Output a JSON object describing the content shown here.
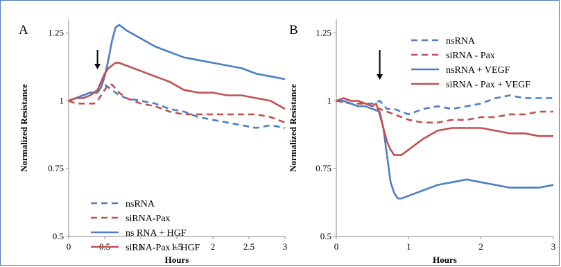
{
  "chart_data": [
    {
      "type": "line",
      "panel_label": "A",
      "xlabel": "Hours",
      "ylabel": "Normalized Resistance",
      "xlim": [
        0,
        3
      ],
      "ylim": [
        0.5,
        1.3
      ],
      "xticks": [
        "0",
        "0.5",
        "1",
        "1.5",
        "2",
        "2.5",
        "3"
      ],
      "yticks": [
        "0.5",
        "0.75",
        "1",
        "1.25"
      ],
      "legend_position": "lower-left",
      "annotation": "arrow at treatment time",
      "arrow_x": 0.4,
      "series": [
        {
          "name": "nsRNA",
          "color": "#4a7ec6",
          "dash": true,
          "points": [
            [
              0,
              1.0
            ],
            [
              0.1,
              1.01
            ],
            [
              0.2,
              1.02
            ],
            [
              0.3,
              1.03
            ],
            [
              0.4,
              1.03
            ],
            [
              0.45,
              1.05
            ],
            [
              0.5,
              1.06
            ],
            [
              0.55,
              1.05
            ],
            [
              0.6,
              1.04
            ],
            [
              0.7,
              1.02
            ],
            [
              0.8,
              1.01
            ],
            [
              1.0,
              1.0
            ],
            [
              1.2,
              0.99
            ],
            [
              1.4,
              0.97
            ],
            [
              1.6,
              0.96
            ],
            [
              1.8,
              0.94
            ],
            [
              2.0,
              0.93
            ],
            [
              2.2,
              0.92
            ],
            [
              2.4,
              0.91
            ],
            [
              2.6,
              0.9
            ],
            [
              2.8,
              0.91
            ],
            [
              3.0,
              0.9
            ]
          ]
        },
        {
          "name": "siRNA-Pax",
          "color": "#c0504d",
          "dash": true,
          "points": [
            [
              0,
              1.0
            ],
            [
              0.1,
              0.99
            ],
            [
              0.2,
              0.99
            ],
            [
              0.3,
              0.99
            ],
            [
              0.35,
              0.99
            ],
            [
              0.4,
              1.0
            ],
            [
              0.45,
              1.02
            ],
            [
              0.5,
              1.04
            ],
            [
              0.55,
              1.06
            ],
            [
              0.6,
              1.06
            ],
            [
              0.7,
              1.03
            ],
            [
              0.8,
              1.01
            ],
            [
              1.0,
              0.99
            ],
            [
              1.2,
              0.98
            ],
            [
              1.4,
              0.96
            ],
            [
              1.6,
              0.95
            ],
            [
              1.8,
              0.95
            ],
            [
              2.0,
              0.95
            ],
            [
              2.2,
              0.95
            ],
            [
              2.4,
              0.95
            ],
            [
              2.6,
              0.95
            ],
            [
              2.8,
              0.94
            ],
            [
              3.0,
              0.92
            ]
          ]
        },
        {
          "name": "ns RNA + HGF",
          "color": "#4a7ec6",
          "dash": false,
          "points": [
            [
              0,
              1.0
            ],
            [
              0.1,
              1.01
            ],
            [
              0.2,
              1.02
            ],
            [
              0.3,
              1.03
            ],
            [
              0.4,
              1.03
            ],
            [
              0.45,
              1.05
            ],
            [
              0.5,
              1.09
            ],
            [
              0.55,
              1.15
            ],
            [
              0.6,
              1.22
            ],
            [
              0.65,
              1.27
            ],
            [
              0.7,
              1.28
            ],
            [
              0.8,
              1.26
            ],
            [
              1.0,
              1.23
            ],
            [
              1.2,
              1.2
            ],
            [
              1.4,
              1.18
            ],
            [
              1.6,
              1.16
            ],
            [
              1.8,
              1.15
            ],
            [
              2.0,
              1.14
            ],
            [
              2.2,
              1.13
            ],
            [
              2.4,
              1.12
            ],
            [
              2.6,
              1.1
            ],
            [
              2.8,
              1.09
            ],
            [
              3.0,
              1.08
            ]
          ]
        },
        {
          "name": "siRNA-Pax + HGF",
          "color": "#c0504d",
          "dash": false,
          "points": [
            [
              0,
              1.0
            ],
            [
              0.1,
              1.01
            ],
            [
              0.2,
              1.01
            ],
            [
              0.3,
              1.02
            ],
            [
              0.4,
              1.04
            ],
            [
              0.45,
              1.07
            ],
            [
              0.5,
              1.1
            ],
            [
              0.55,
              1.12
            ],
            [
              0.6,
              1.13
            ],
            [
              0.65,
              1.14
            ],
            [
              0.7,
              1.14
            ],
            [
              0.8,
              1.13
            ],
            [
              1.0,
              1.11
            ],
            [
              1.2,
              1.09
            ],
            [
              1.4,
              1.07
            ],
            [
              1.6,
              1.04
            ],
            [
              1.8,
              1.03
            ],
            [
              2.0,
              1.03
            ],
            [
              2.2,
              1.02
            ],
            [
              2.4,
              1.02
            ],
            [
              2.6,
              1.01
            ],
            [
              2.8,
              1.0
            ],
            [
              3.0,
              0.97
            ]
          ]
        }
      ]
    },
    {
      "type": "line",
      "panel_label": "B",
      "xlabel": "Hours",
      "ylabel": "Normalized Resistance",
      "xlim": [
        0,
        3
      ],
      "ylim": [
        0.5,
        1.3
      ],
      "xticks": [
        "0",
        "1",
        "2",
        "3"
      ],
      "yticks": [
        "0.5",
        "0.75",
        "1",
        "1.25"
      ],
      "legend_position": "top-right",
      "annotation": "arrow at treatment time",
      "arrow_x": 0.6,
      "series": [
        {
          "name": "nsRNA",
          "color": "#4a7ec6",
          "dash": true,
          "points": [
            [
              0,
              1.0
            ],
            [
              0.2,
              0.99
            ],
            [
              0.4,
              0.99
            ],
            [
              0.5,
              0.99
            ],
            [
              0.6,
              1.0
            ],
            [
              0.7,
              0.97
            ],
            [
              0.8,
              0.97
            ],
            [
              0.9,
              0.96
            ],
            [
              1.0,
              0.95
            ],
            [
              1.2,
              0.97
            ],
            [
              1.4,
              0.98
            ],
            [
              1.6,
              0.97
            ],
            [
              1.8,
              0.98
            ],
            [
              2.0,
              0.99
            ],
            [
              2.2,
              1.01
            ],
            [
              2.4,
              1.02
            ],
            [
              2.6,
              1.01
            ],
            [
              2.8,
              1.01
            ],
            [
              3.0,
              1.01
            ]
          ]
        },
        {
          "name": "siRNA - Pax",
          "color": "#c0504d",
          "dash": true,
          "points": [
            [
              0,
              1.0
            ],
            [
              0.2,
              0.99
            ],
            [
              0.4,
              0.99
            ],
            [
              0.5,
              0.98
            ],
            [
              0.6,
              0.97
            ],
            [
              0.7,
              0.96
            ],
            [
              0.8,
              0.95
            ],
            [
              0.9,
              0.94
            ],
            [
              1.0,
              0.93
            ],
            [
              1.2,
              0.92
            ],
            [
              1.4,
              0.92
            ],
            [
              1.6,
              0.93
            ],
            [
              1.8,
              0.93
            ],
            [
              2.0,
              0.94
            ],
            [
              2.2,
              0.94
            ],
            [
              2.4,
              0.95
            ],
            [
              2.6,
              0.95
            ],
            [
              2.8,
              0.96
            ],
            [
              3.0,
              0.96
            ]
          ]
        },
        {
          "name": "nsRNA + VEGF",
          "color": "#4a7ec6",
          "dash": false,
          "points": [
            [
              0,
              1.0
            ],
            [
              0.1,
              1.0
            ],
            [
              0.2,
              0.99
            ],
            [
              0.3,
              0.98
            ],
            [
              0.4,
              0.98
            ],
            [
              0.5,
              0.97
            ],
            [
              0.6,
              0.96
            ],
            [
              0.65,
              0.9
            ],
            [
              0.7,
              0.8
            ],
            [
              0.75,
              0.7
            ],
            [
              0.8,
              0.66
            ],
            [
              0.85,
              0.64
            ],
            [
              0.9,
              0.64
            ],
            [
              1.0,
              0.65
            ],
            [
              1.2,
              0.67
            ],
            [
              1.4,
              0.69
            ],
            [
              1.6,
              0.7
            ],
            [
              1.8,
              0.71
            ],
            [
              2.0,
              0.7
            ],
            [
              2.2,
              0.69
            ],
            [
              2.4,
              0.68
            ],
            [
              2.6,
              0.68
            ],
            [
              2.8,
              0.68
            ],
            [
              3.0,
              0.69
            ]
          ]
        },
        {
          "name": "siRNA - Pax + VEGF",
          "color": "#c0504d",
          "dash": false,
          "points": [
            [
              0,
              1.0
            ],
            [
              0.1,
              1.01
            ],
            [
              0.2,
              1.0
            ],
            [
              0.3,
              1.0
            ],
            [
              0.4,
              0.99
            ],
            [
              0.5,
              0.98
            ],
            [
              0.55,
              0.99
            ],
            [
              0.6,
              0.95
            ],
            [
              0.65,
              0.9
            ],
            [
              0.7,
              0.85
            ],
            [
              0.75,
              0.82
            ],
            [
              0.8,
              0.8
            ],
            [
              0.9,
              0.8
            ],
            [
              1.0,
              0.82
            ],
            [
              1.2,
              0.86
            ],
            [
              1.4,
              0.89
            ],
            [
              1.6,
              0.9
            ],
            [
              1.8,
              0.9
            ],
            [
              2.0,
              0.9
            ],
            [
              2.2,
              0.89
            ],
            [
              2.4,
              0.88
            ],
            [
              2.6,
              0.88
            ],
            [
              2.8,
              0.87
            ],
            [
              3.0,
              0.87
            ]
          ]
        }
      ]
    }
  ]
}
